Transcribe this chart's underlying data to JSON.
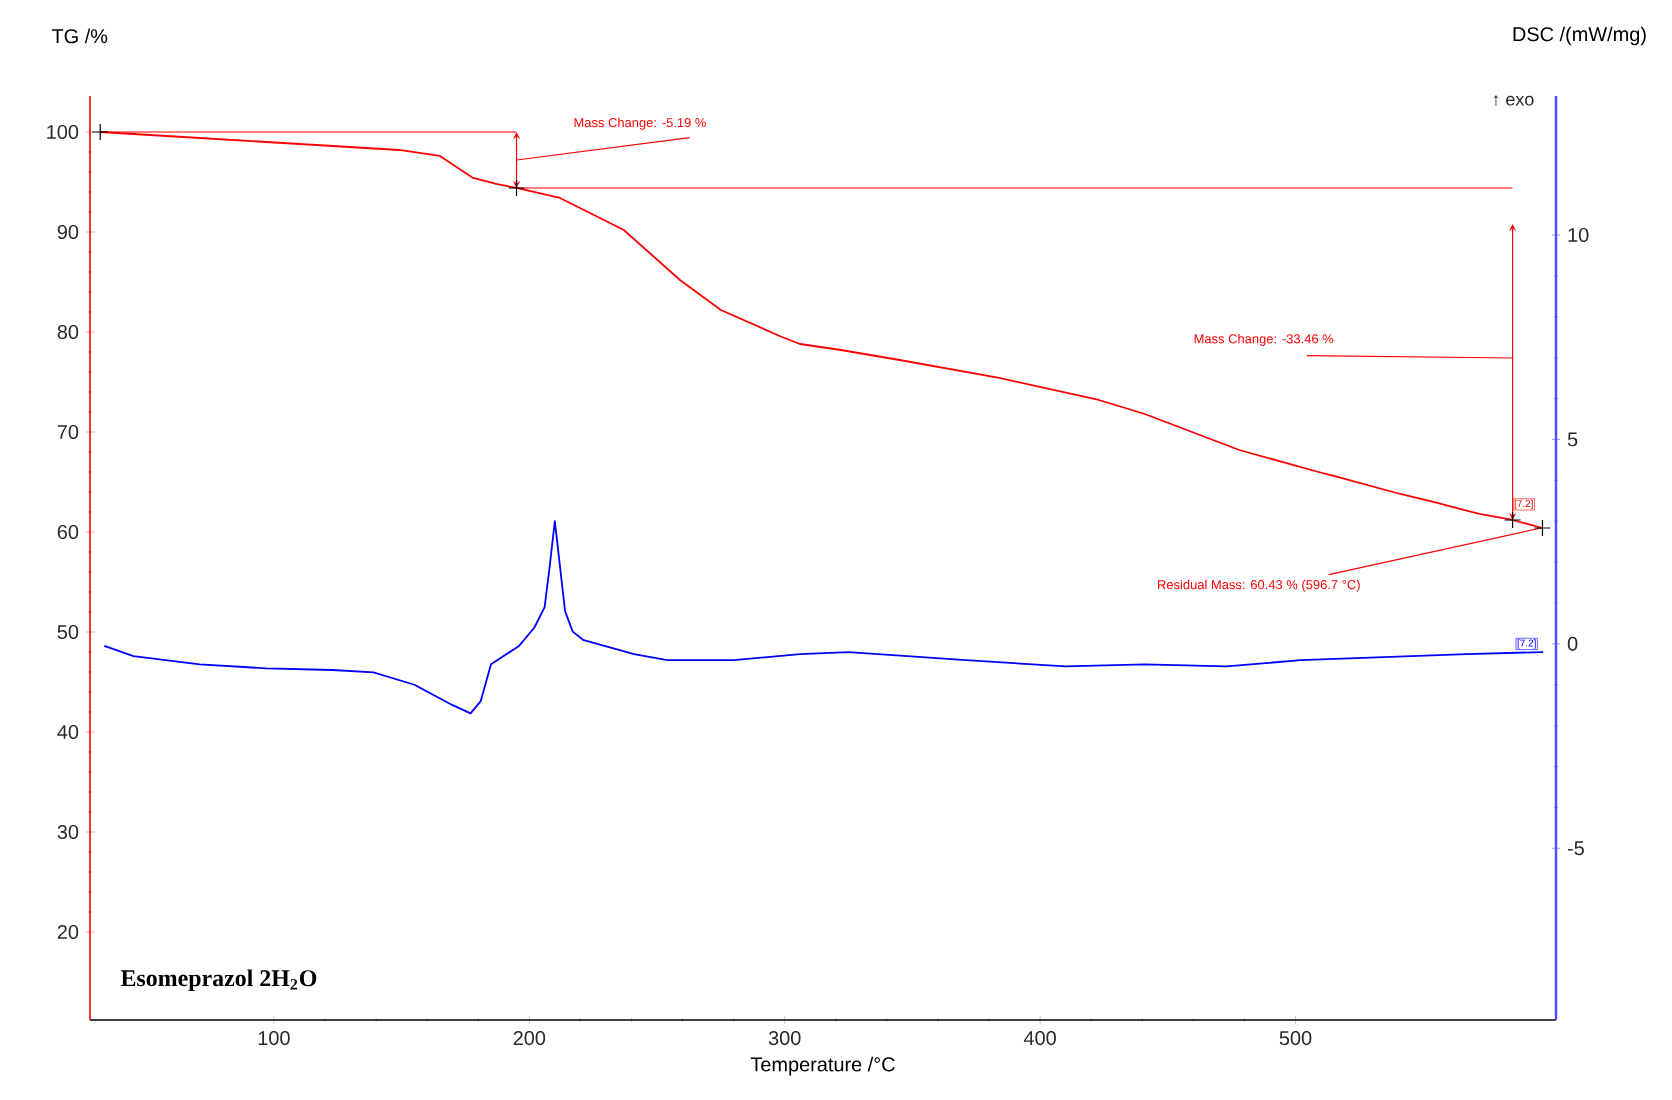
{
  "chart_data": {
    "type": "line",
    "xlabel": "Temperature /°C",
    "ylabel": "TG /%",
    "y2label": "DSC /(mW/mg)",
    "xlim": [
      28,
      602
    ],
    "xticks": [
      100,
      200,
      300,
      400,
      500
    ],
    "ylim": [
      11.2,
      103.6
    ],
    "yticks": [
      20,
      30,
      40,
      50,
      60,
      70,
      80,
      90,
      100
    ],
    "y2lim": [
      -9.2,
      13.4
    ],
    "y2ticks": [
      -5,
      0,
      5,
      10
    ],
    "series": [
      {
        "color": "#ff0000",
        "x": [
          32,
          45,
          71,
          110,
          149,
          165,
          178,
          187,
          195,
          212,
          237,
          259,
          275,
          298,
          306,
          322,
          345,
          384,
          423,
          441,
          478,
          509,
          515,
          541,
          554,
          572,
          585,
          596.7
        ],
        "values": [
          100,
          99.8,
          99.4,
          98.8,
          98.2,
          97.6,
          95.4,
          94.8,
          94.4,
          93.4,
          90.2,
          85.2,
          82.2,
          79.6,
          78.8,
          78.2,
          77.2,
          75.4,
          73.2,
          71.8,
          68.2,
          66.0,
          65.6,
          63.8,
          63.0,
          61.8,
          61.2,
          60.4
        ]
      },
      {
        "color": "#0000ff",
        "axis": "y2",
        "x": [
          33.6,
          45,
          71,
          97,
          123,
          139,
          155,
          170,
          177,
          181,
          185,
          196,
          202,
          206,
          208,
          210,
          212,
          214,
          217,
          221,
          241,
          254,
          280,
          306,
          325,
          371,
          410,
          441,
          473,
          502,
          567,
          597
        ],
        "values": [
          -0.05,
          -0.3,
          -0.5,
          -0.6,
          -0.64,
          -0.7,
          -1.0,
          -1.5,
          -1.7,
          -1.4,
          -0.5,
          -0.05,
          0.4,
          0.9,
          1.9,
          3.0,
          1.9,
          0.8,
          0.3,
          0.1,
          -0.25,
          -0.4,
          -0.4,
          -0.25,
          -0.2,
          -0.4,
          -0.55,
          -0.5,
          -0.55,
          -0.4,
          -0.25,
          -0.2
        ]
      },
      {
        "type": "scatter",
        "marker": "cross",
        "color": "#000000",
        "x": [
          32,
          195,
          585,
          596.7
        ],
        "values": [
          100,
          94.4,
          61.2,
          60.4
        ]
      }
    ],
    "marker": "none",
    "ref_lines": [
      {
        "axis": "y",
        "value": 94.4,
        "color": "#ff0000"
      }
    ],
    "annotations": [
      "Mass Change: -5.19 %",
      "Mass Change: -33.46 %",
      {
        "text": "Residual Mass: 60.43 % (596.7 °C)",
        "x": 596.7,
        "y": 60.43
      },
      "[7.2]",
      "[7.2]",
      "↑ exo",
      "Esomeprazol 2H$_{2}$O"
    ]
  }
}
